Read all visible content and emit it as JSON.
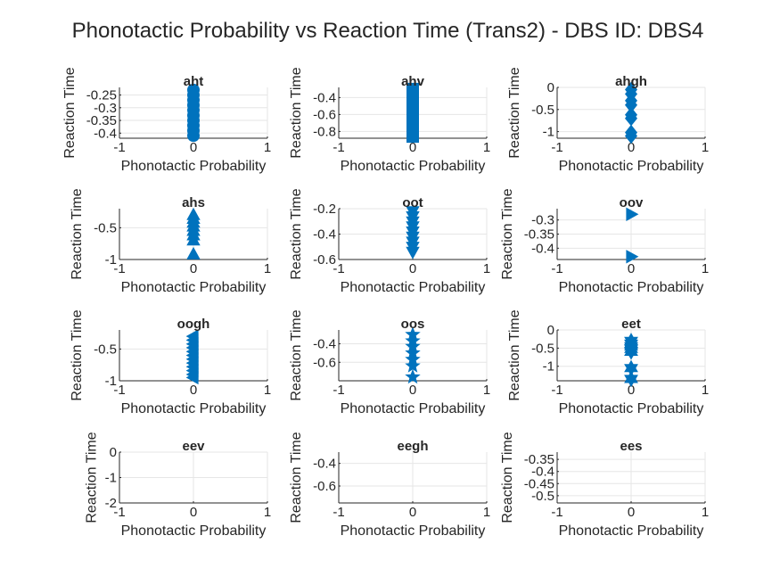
{
  "figure": {
    "title": "Phonotactic Probability vs Reaction Time (Trans2) - DBS ID: DBS4",
    "marker_color": "#0072BD"
  },
  "chart_data": [
    {
      "type": "scatter",
      "title": "aht",
      "xlabel": "Phonotactic Probability",
      "ylabel": "Reaction Time",
      "xlim": [
        -1,
        1
      ],
      "ylim": [
        -0.42,
        -0.22
      ],
      "xticks": [
        -1,
        0,
        1
      ],
      "yticks": [
        -0.4,
        -0.35,
        -0.3,
        -0.25
      ],
      "ytick_labels": [
        "-0.4",
        "-0.35",
        "-0.3",
        "-0.25"
      ],
      "marker": "circle",
      "grid": true,
      "points": [
        [
          0,
          -0.23
        ],
        [
          0,
          -0.25
        ],
        [
          0,
          -0.27
        ],
        [
          0,
          -0.29
        ],
        [
          0,
          -0.31
        ],
        [
          0,
          -0.33
        ],
        [
          0,
          -0.35
        ],
        [
          0,
          -0.37
        ],
        [
          0,
          -0.39
        ],
        [
          0,
          -0.41
        ]
      ]
    },
    {
      "type": "scatter",
      "title": "ahv",
      "xlabel": "Phonotactic Probability",
      "ylabel": "Reaction Time",
      "xlim": [
        -1,
        1
      ],
      "ylim": [
        -0.88,
        -0.28
      ],
      "xticks": [
        -1,
        0,
        1
      ],
      "yticks": [
        -0.8,
        -0.6,
        -0.4
      ],
      "ytick_labels": [
        "-0.8",
        "-0.6",
        "-0.4"
      ],
      "marker": "square",
      "grid": true,
      "points": [
        [
          0,
          -0.3
        ],
        [
          0,
          -0.34
        ],
        [
          0,
          -0.38
        ],
        [
          0,
          -0.42
        ],
        [
          0,
          -0.46
        ],
        [
          0,
          -0.5
        ],
        [
          0,
          -0.54
        ],
        [
          0,
          -0.58
        ],
        [
          0,
          -0.62
        ],
        [
          0,
          -0.66
        ],
        [
          0,
          -0.7
        ],
        [
          0,
          -0.74
        ],
        [
          0,
          -0.78
        ],
        [
          0,
          -0.82
        ],
        [
          0,
          -0.86
        ]
      ]
    },
    {
      "type": "scatter",
      "title": "ahgh",
      "xlabel": "Phonotactic Probability",
      "ylabel": "Reaction Time",
      "xlim": [
        -1,
        1
      ],
      "ylim": [
        -1.15,
        0
      ],
      "xticks": [
        -1,
        0,
        1
      ],
      "yticks": [
        -1,
        -0.5,
        0
      ],
      "ytick_labels": [
        "-1",
        "-0.5",
        "0"
      ],
      "marker": "diamond",
      "grid": true,
      "points": [
        [
          0,
          -0.05
        ],
        [
          0,
          -0.15
        ],
        [
          0,
          -0.3
        ],
        [
          0,
          -0.4
        ],
        [
          0,
          -0.62
        ],
        [
          0,
          -0.7
        ],
        [
          0,
          -1.02
        ],
        [
          0,
          -1.1
        ]
      ]
    },
    {
      "type": "scatter",
      "title": "ahs",
      "xlabel": "Phonotactic Probability",
      "ylabel": "Reaction Time",
      "xlim": [
        -1,
        1
      ],
      "ylim": [
        -1,
        -0.2
      ],
      "xticks": [
        -1,
        0,
        1
      ],
      "yticks": [
        -1,
        -0.5
      ],
      "ytick_labels": [
        "-1",
        "-0.5"
      ],
      "marker": "triangle-up",
      "grid": true,
      "points": [
        [
          0,
          -0.3
        ],
        [
          0,
          -0.36
        ],
        [
          0,
          -0.42
        ],
        [
          0,
          -0.48
        ],
        [
          0,
          -0.55
        ],
        [
          0,
          -0.62
        ],
        [
          0,
          -0.7
        ],
        [
          0,
          -0.92
        ]
      ]
    },
    {
      "type": "scatter",
      "title": "oot",
      "xlabel": "Phonotactic Probability",
      "ylabel": "Reaction Time",
      "xlim": [
        -1,
        1
      ],
      "ylim": [
        -0.6,
        -0.2
      ],
      "xticks": [
        -1,
        0,
        1
      ],
      "yticks": [
        -0.6,
        -0.4,
        -0.2
      ],
      "ytick_labels": [
        "-0.6",
        "-0.4",
        "-0.2"
      ],
      "marker": "triangle-down",
      "grid": true,
      "points": [
        [
          0,
          -0.22
        ],
        [
          0,
          -0.26
        ],
        [
          0,
          -0.3
        ],
        [
          0,
          -0.34
        ],
        [
          0,
          -0.38
        ],
        [
          0,
          -0.42
        ],
        [
          0,
          -0.46
        ],
        [
          0,
          -0.5
        ],
        [
          0,
          -0.54
        ]
      ]
    },
    {
      "type": "scatter",
      "title": "oov",
      "xlabel": "Phonotactic Probability",
      "ylabel": "Reaction Time",
      "xlim": [
        -1,
        1
      ],
      "ylim": [
        -0.44,
        -0.26
      ],
      "xticks": [
        -1,
        0,
        1
      ],
      "yticks": [
        -0.4,
        -0.35,
        -0.3
      ],
      "ytick_labels": [
        "-0.4",
        "-0.35",
        "-0.3"
      ],
      "marker": "triangle-right",
      "grid": true,
      "points": [
        [
          0,
          -0.28
        ],
        [
          0,
          -0.43
        ]
      ]
    },
    {
      "type": "scatter",
      "title": "oogh",
      "xlabel": "Phonotactic Probability",
      "ylabel": "Reaction Time",
      "xlim": [
        -1,
        1
      ],
      "ylim": [
        -1,
        -0.2
      ],
      "xticks": [
        -1,
        0,
        1
      ],
      "yticks": [
        -1,
        -0.5
      ],
      "ytick_labels": [
        "-1",
        "-0.5"
      ],
      "marker": "triangle-left",
      "grid": true,
      "points": [
        [
          0,
          -0.3
        ],
        [
          0,
          -0.36
        ],
        [
          0,
          -0.42
        ],
        [
          0,
          -0.48
        ],
        [
          0,
          -0.54
        ],
        [
          0,
          -0.6
        ],
        [
          0,
          -0.66
        ],
        [
          0,
          -0.72
        ],
        [
          0,
          -0.78
        ],
        [
          0,
          -0.84
        ],
        [
          0,
          -0.9
        ],
        [
          0,
          -0.95
        ]
      ]
    },
    {
      "type": "scatter",
      "title": "oos",
      "xlabel": "Phonotactic Probability",
      "ylabel": "Reaction Time",
      "xlim": [
        -1,
        1
      ],
      "ylim": [
        -0.8,
        -0.25
      ],
      "xticks": [
        -1,
        0,
        1
      ],
      "yticks": [
        -0.6,
        -0.4
      ],
      "ytick_labels": [
        "-0.6",
        "-0.4"
      ],
      "marker": "star",
      "grid": true,
      "points": [
        [
          0,
          -0.3
        ],
        [
          0,
          -0.37
        ],
        [
          0,
          -0.43
        ],
        [
          0,
          -0.5
        ],
        [
          0,
          -0.57
        ],
        [
          0,
          -0.64
        ],
        [
          0,
          -0.76
        ]
      ]
    },
    {
      "type": "scatter",
      "title": "eet",
      "xlabel": "Phonotactic Probability",
      "ylabel": "Reaction Time",
      "xlim": [
        -1,
        1
      ],
      "ylim": [
        -1.4,
        0
      ],
      "xticks": [
        -1,
        0,
        1
      ],
      "yticks": [
        -1,
        -0.5,
        0
      ],
      "ytick_labels": [
        "-1",
        "-0.5",
        "0"
      ],
      "marker": "hexagram",
      "grid": true,
      "points": [
        [
          0,
          -0.3
        ],
        [
          0,
          -0.38
        ],
        [
          0,
          -0.45
        ],
        [
          0,
          -0.52
        ],
        [
          0,
          -0.6
        ],
        [
          0,
          -1.05
        ],
        [
          0,
          -1.35
        ]
      ]
    },
    {
      "type": "scatter",
      "title": "eev",
      "xlabel": "Phonotactic Probability",
      "ylabel": "Reaction Time",
      "xlim": [
        -1,
        1
      ],
      "ylim": [
        -2,
        0
      ],
      "xticks": [
        -1,
        0,
        1
      ],
      "yticks": [
        -2,
        -1,
        0
      ],
      "ytick_labels": [
        "-2",
        "-1",
        "0"
      ],
      "marker": "none",
      "grid": true,
      "points": []
    },
    {
      "type": "scatter",
      "title": "eegh",
      "xlabel": "Phonotactic Probability",
      "ylabel": "Reaction Time",
      "xlim": [
        -1,
        1
      ],
      "ylim": [
        -0.75,
        -0.3
      ],
      "xticks": [
        -1,
        0,
        1
      ],
      "yticks": [
        -0.6,
        -0.4
      ],
      "ytick_labels": [
        "-0.6",
        "-0.4"
      ],
      "marker": "none",
      "grid": true,
      "points": []
    },
    {
      "type": "scatter",
      "title": "ees",
      "xlabel": "Phonotactic Probability",
      "ylabel": "Reaction Time",
      "xlim": [
        -1,
        1
      ],
      "ylim": [
        -0.53,
        -0.32
      ],
      "xticks": [
        -1,
        0,
        1
      ],
      "yticks": [
        -0.5,
        -0.45,
        -0.4,
        -0.35
      ],
      "ytick_labels": [
        "-0.5",
        "-0.45",
        "-0.4",
        "-0.35"
      ],
      "marker": "none",
      "grid": true,
      "points": []
    }
  ]
}
